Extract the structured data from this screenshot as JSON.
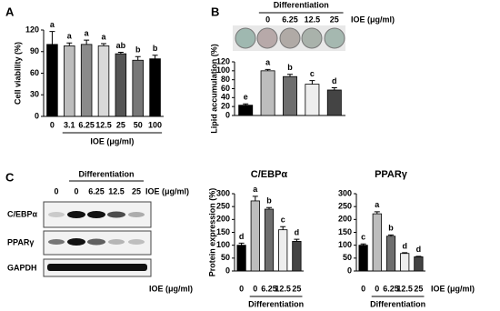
{
  "panel_labels": [
    "A",
    "B",
    "C"
  ],
  "chart_data": [
    {
      "type": "bar",
      "y_label": "Cell viability (%)",
      "x_label": "IOE (μg/ml)",
      "categories": [
        "0",
        "3.1",
        "6.25",
        "12.5",
        "25",
        "50",
        "100"
      ],
      "values": [
        100,
        98,
        100,
        98,
        87,
        78,
        80
      ],
      "errors": [
        18,
        4,
        6,
        3,
        2,
        5,
        5
      ],
      "letters": [
        "a",
        "a",
        "a",
        "a",
        "ab",
        "b",
        "b"
      ],
      "colors": [
        "#000000",
        "#bdbdbd",
        "#8a8a8a",
        "#d9d9d9",
        "#555555",
        "#777777",
        "#000000"
      ],
      "ylim": [
        0,
        120
      ],
      "yticks": [
        0,
        30,
        60,
        90,
        120
      ]
    },
    {
      "type": "bar",
      "y_label": "Lipid accumulation (%)",
      "group_label": "Differentiation",
      "x_label": "IOE (μg/ml)",
      "categories": [
        null,
        "0",
        "6.25",
        "12.5",
        "25"
      ],
      "values": [
        23,
        100,
        87,
        70,
        57
      ],
      "errors": [
        3,
        3,
        5,
        8,
        5
      ],
      "letters": [
        "e",
        "a",
        "b",
        "c",
        "d"
      ],
      "colors": [
        "#000000",
        "#bdbdbd",
        "#6e6e6e",
        "#eeeeee",
        "#444444"
      ],
      "ylim": [
        0,
        120
      ],
      "yticks": [
        0,
        20,
        40,
        60,
        80,
        100,
        120
      ]
    },
    {
      "type": "bar",
      "title": "C/EBPα",
      "y_label": "Protein expression (%)",
      "group_label": "Differentiation",
      "x_label": "IOE (μg/ml)",
      "categories": [
        "0",
        "0",
        "6.25",
        "12.5",
        "25"
      ],
      "values": [
        100,
        272,
        240,
        160,
        115
      ],
      "errors": [
        8,
        18,
        6,
        12,
        8
      ],
      "letters": [
        "d",
        "a",
        "b",
        "c",
        "d"
      ],
      "colors": [
        "#000000",
        "#bdbdbd",
        "#6e6e6e",
        "#eeeeee",
        "#444444"
      ],
      "ylim": [
        0,
        300
      ],
      "yticks": [
        0,
        50,
        100,
        150,
        200,
        250,
        300
      ]
    },
    {
      "type": "bar",
      "title": "PPARγ",
      "group_label": "Differentiation",
      "x_label": "IOE (μg/ml)",
      "categories": [
        "0",
        "0",
        "6.25",
        "12.5",
        "25"
      ],
      "values": [
        100,
        222,
        135,
        68,
        55
      ],
      "errors": [
        5,
        8,
        5,
        3,
        2
      ],
      "letters": [
        "c",
        "a",
        "b",
        "d",
        "d"
      ],
      "colors": [
        "#000000",
        "#bdbdbd",
        "#6e6e6e",
        "#eeeeee",
        "#444444"
      ],
      "ylim": [
        0,
        300
      ],
      "yticks": [
        0,
        50,
        100,
        150,
        200,
        250,
        300
      ]
    }
  ],
  "blot": {
    "group_label": "Differentiation",
    "x_label": "IOE (μg/ml)",
    "lanes": [
      "0",
      "0",
      "6.25",
      "12.5",
      "25"
    ],
    "rows": [
      "C/EBPα",
      "PPARγ",
      "GAPDH"
    ]
  }
}
